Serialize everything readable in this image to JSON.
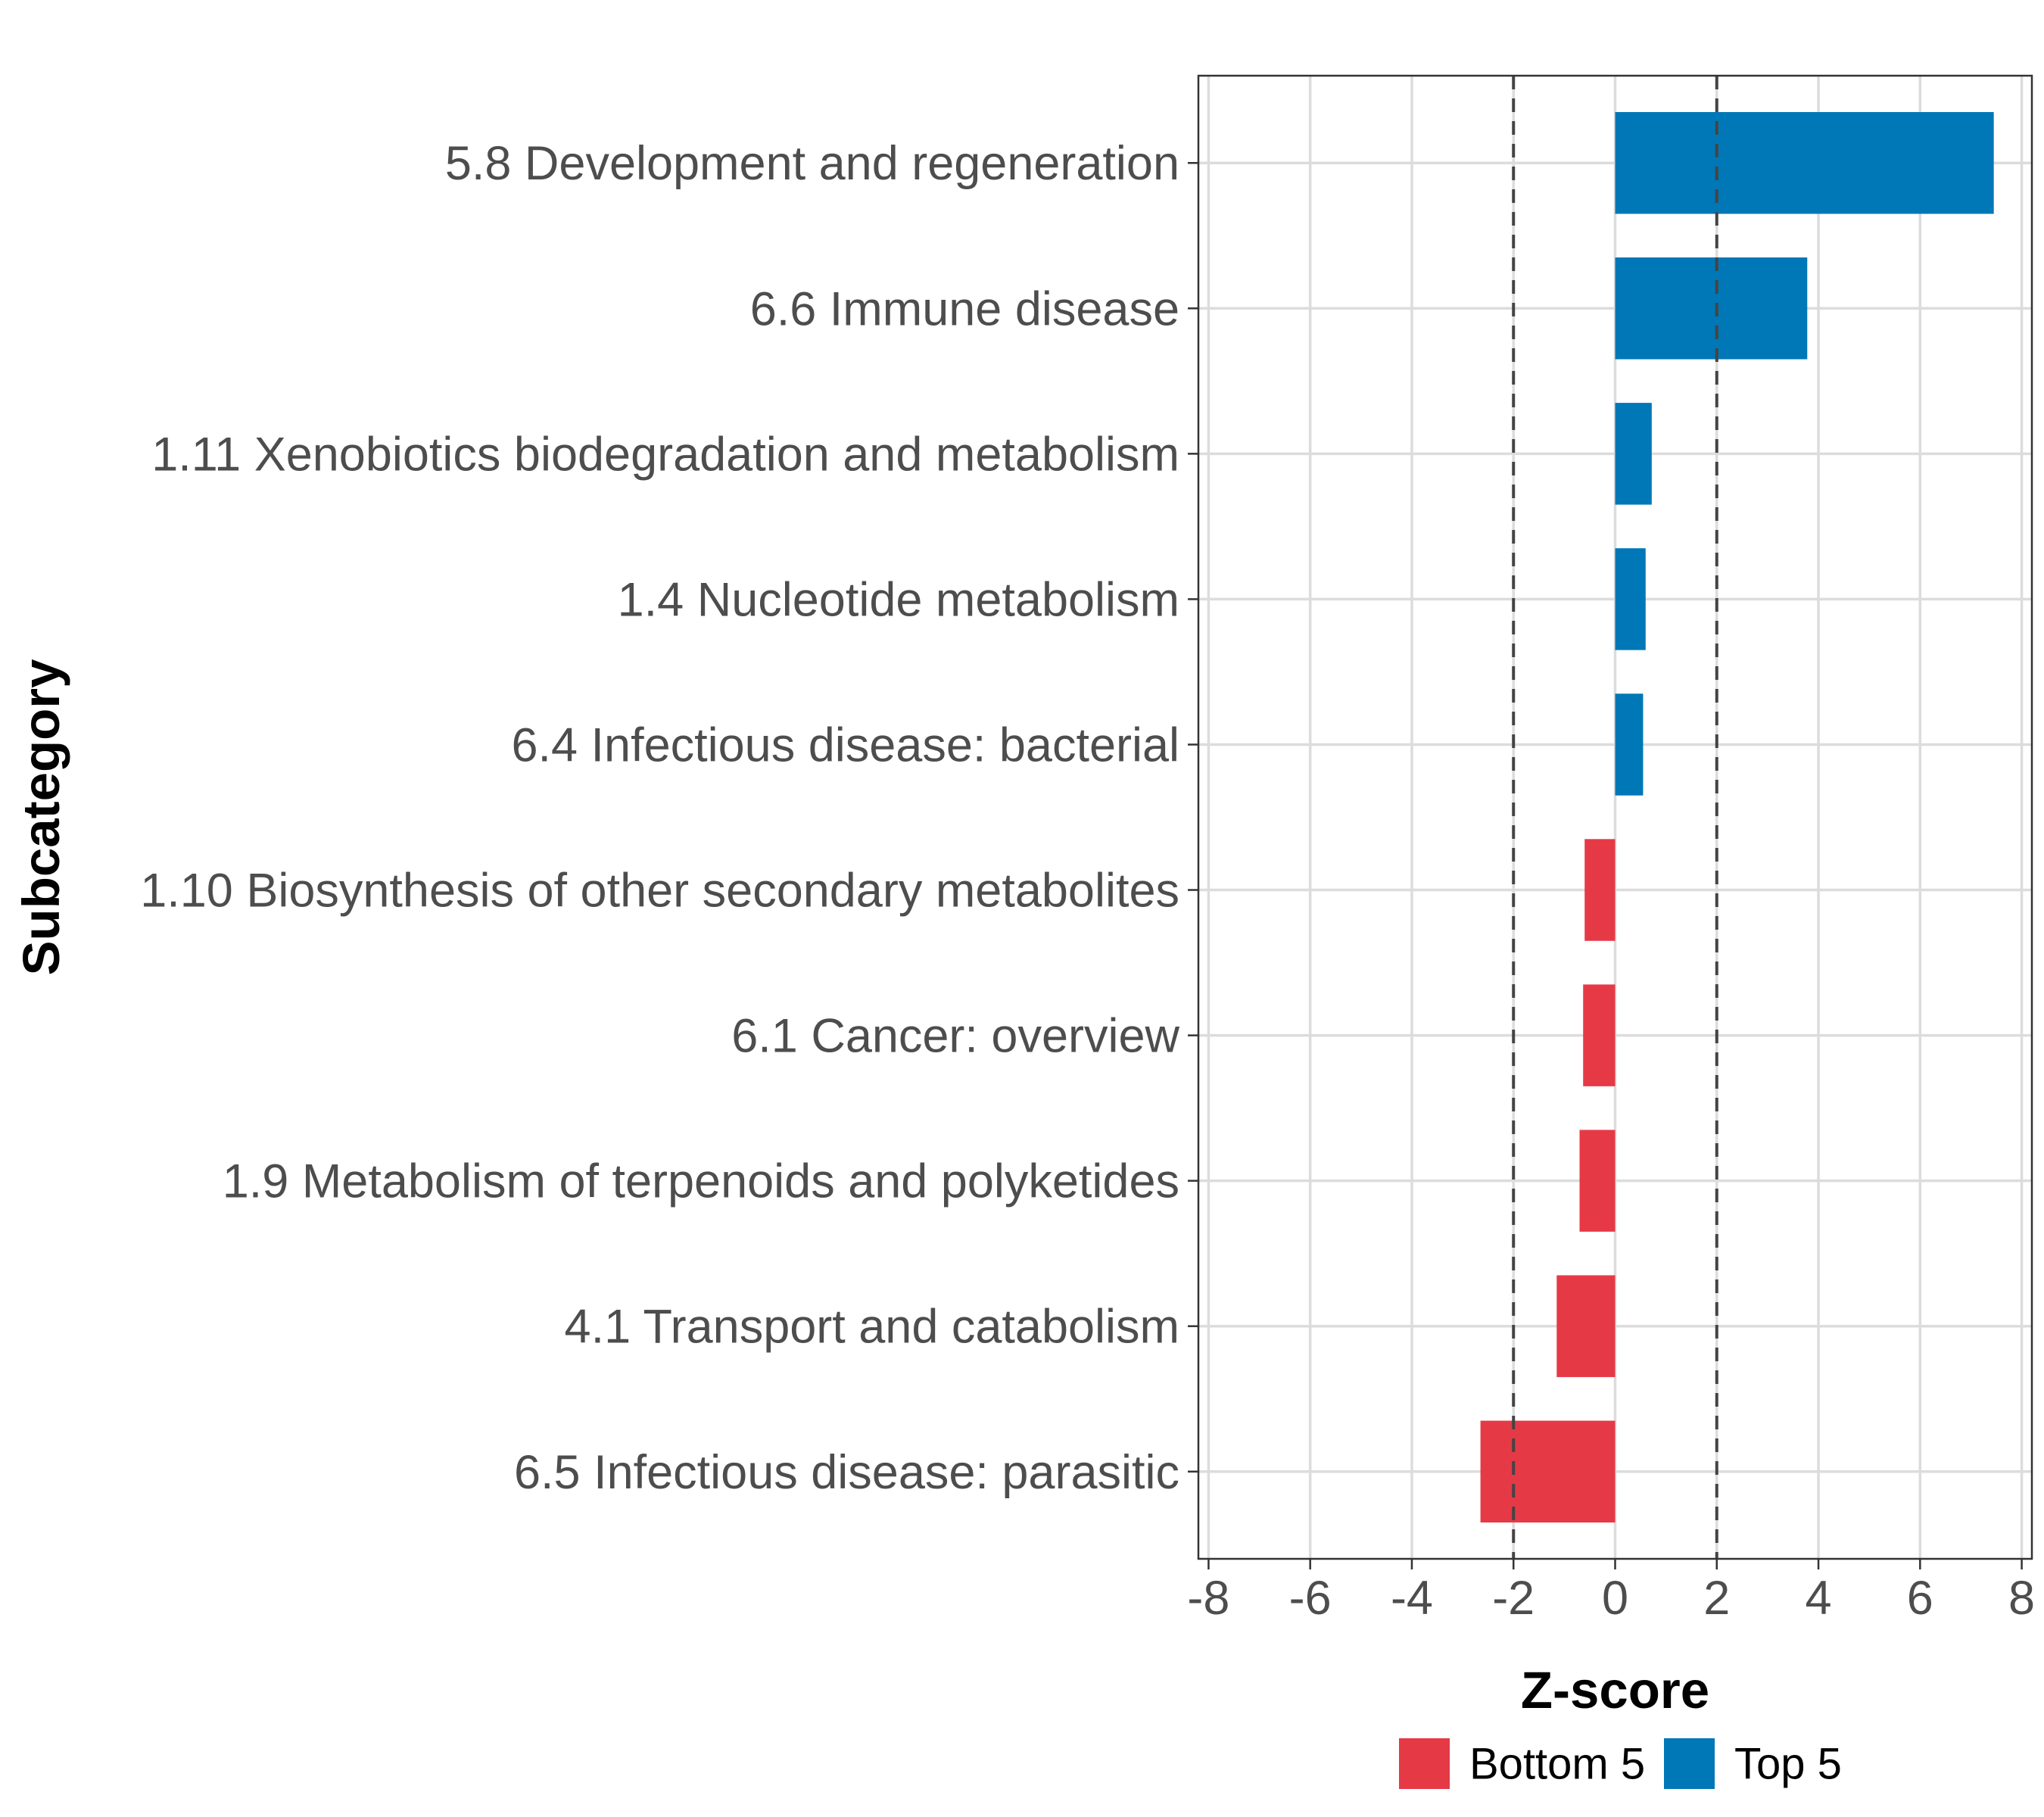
{
  "chart_data": {
    "type": "bar",
    "orientation": "horizontal",
    "xlabel": "Z-score",
    "ylabel": "Subcategory",
    "xlim": [
      -8.2,
      8.2
    ],
    "xticks": [
      -8,
      -6,
      -4,
      -2,
      0,
      2,
      4,
      6,
      8
    ],
    "reference_lines": [
      -2,
      2
    ],
    "grid": true,
    "categories": [
      "5.8 Development and regeneration",
      "6.6 Immune disease",
      "1.11 Xenobiotics biodegradation and metabolism",
      "1.4 Nucleotide metabolism",
      "6.4 Infectious disease: bacterial",
      "1.10 Biosynthesis of other secondary metabolites",
      "6.1 Cancer: overview",
      "1.9 Metabolism of terpenoids and polyketides",
      "4.1 Transport and catabolism",
      "6.5 Infectious disease: parasitic"
    ],
    "values": [
      7.45,
      3.78,
      0.72,
      0.6,
      0.55,
      -0.6,
      -0.63,
      -0.7,
      -1.15,
      -2.65
    ],
    "groups": [
      "Top 5",
      "Top 5",
      "Top 5",
      "Top 5",
      "Top 5",
      "Bottom 5",
      "Bottom 5",
      "Bottom 5",
      "Bottom 5",
      "Bottom 5"
    ],
    "legend": {
      "position": "bottom",
      "entries": [
        {
          "name": "Bottom 5",
          "color": "#e63946"
        },
        {
          "name": "Top 5",
          "color": "#0077b6"
        }
      ]
    }
  }
}
